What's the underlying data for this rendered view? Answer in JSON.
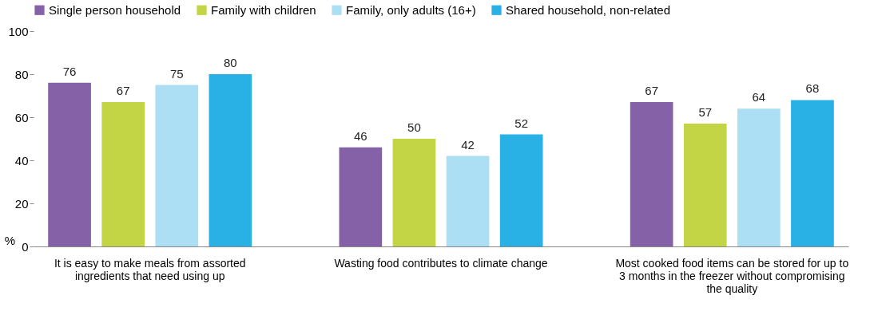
{
  "chart_data": {
    "type": "bar",
    "ylabel": "%",
    "categories": [
      "It is easy to make meals from assorted ingredients that need using up",
      "Wasting food contributes to climate change",
      "Most cooked food items can be stored for up to 3 months in the freezer without compromising the quality"
    ],
    "series": [
      {
        "name": "Single person household",
        "color": "#8561a8",
        "values": [
          76,
          46,
          67
        ]
      },
      {
        "name": "Family with children",
        "color": "#c3d444",
        "values": [
          67,
          50,
          57
        ]
      },
      {
        "name": "Family, only adults (16+)",
        "color": "#addff4",
        "values": [
          75,
          42,
          64
        ]
      },
      {
        "name": "Shared household, non-related",
        "color": "#29b1e6",
        "values": [
          80,
          52,
          68
        ]
      }
    ],
    "ylim": [
      0,
      100
    ],
    "yticks": [
      0,
      20,
      40,
      60,
      80,
      100
    ],
    "data_labels": true,
    "legend": "top",
    "grid": false
  }
}
